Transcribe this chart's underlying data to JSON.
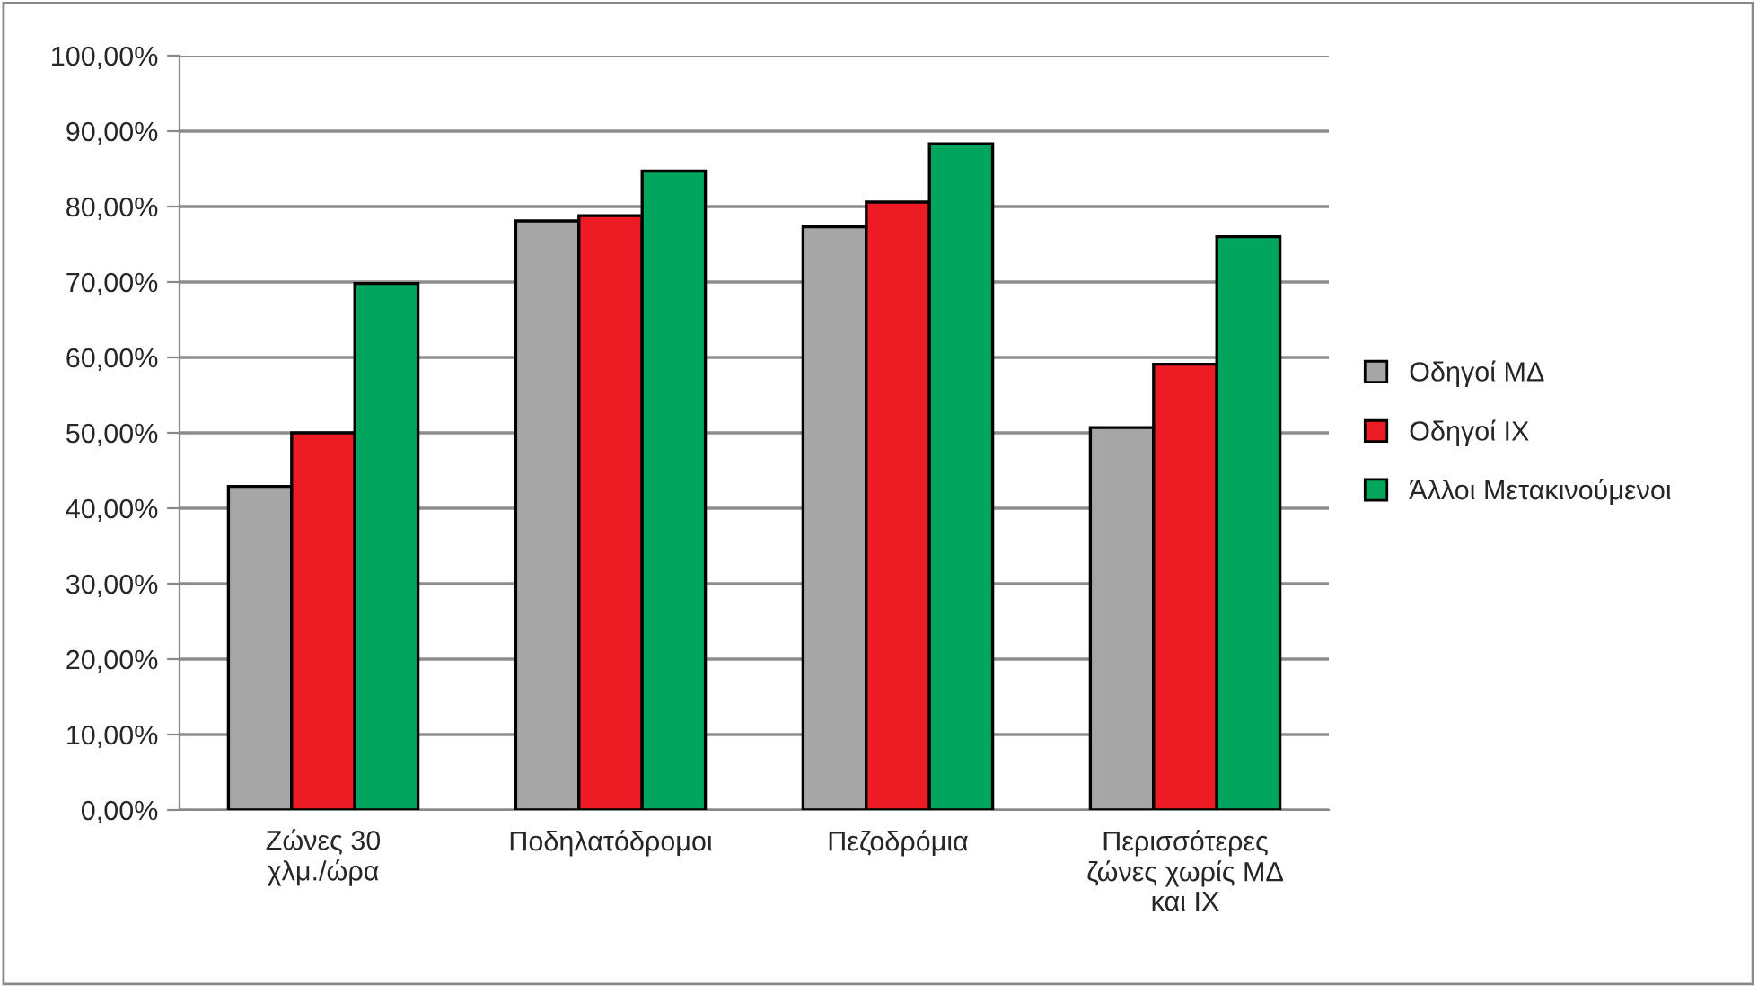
{
  "chart_data": {
    "type": "bar",
    "categories": [
      "Ζώνες 30\nχλμ./ώρα",
      "Ποδηλατόδρομοι",
      "Πεζοδρόμια",
      "Περισσότερες\nζώνες χωρίς ΜΔ\nκαι ΙΧ"
    ],
    "series": [
      {
        "name": "Οδηγοί ΜΔ",
        "color": "#a6a6a6",
        "values": [
          42.9,
          78.1,
          77.3,
          50.7
        ]
      },
      {
        "name": "Οδηγοί ΙΧ",
        "color": "#ed1c24",
        "values": [
          50.0,
          78.8,
          80.6,
          59.1
        ]
      },
      {
        "name": "Άλλοι Μετακινούμενοι",
        "color": "#00a65d",
        "values": [
          69.8,
          84.7,
          88.3,
          76.0
        ]
      }
    ],
    "ylim": [
      0,
      100
    ],
    "yticks": [
      {
        "value": 0,
        "label": "0,00%"
      },
      {
        "value": 10,
        "label": "10,00%"
      },
      {
        "value": 20,
        "label": "20,00%"
      },
      {
        "value": 30,
        "label": "30,00%"
      },
      {
        "value": 40,
        "label": "40,00%"
      },
      {
        "value": 50,
        "label": "50,00%"
      },
      {
        "value": 60,
        "label": "60,00%"
      },
      {
        "value": 70,
        "label": "70,00%"
      },
      {
        "value": 80,
        "label": "80,00%"
      },
      {
        "value": 90,
        "label": "90,00%"
      },
      {
        "value": 100,
        "label": "100,00%"
      }
    ],
    "grid": "y",
    "legend": "right"
  }
}
